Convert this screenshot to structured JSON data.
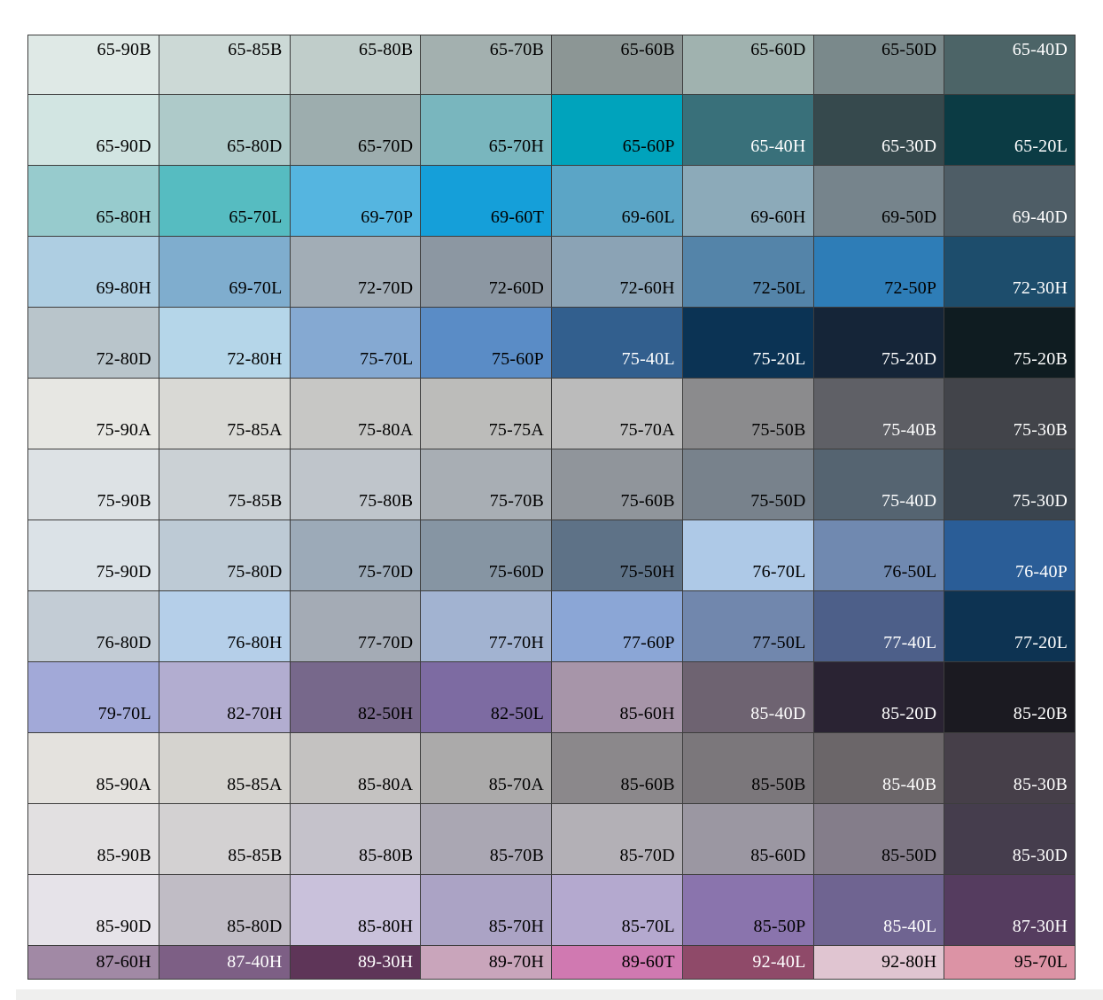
{
  "chart_data": {
    "type": "table",
    "title": "Colour swatch chart (paint colour codes over tinted swatches, blue-teal through grey to purple-pink range)",
    "layout": {
      "columns": 8,
      "rows": 14,
      "grid": "on",
      "border_color": "#3d3d3d",
      "label_color_light": "#ffffff",
      "label_color_dark": "#000000",
      "footer_strip_color": "#efefee"
    },
    "rows": [
      {
        "cells": [
          {
            "code": "65-90B",
            "bg": "#dfe9e6",
            "fg": "#000000"
          },
          {
            "code": "65-85B",
            "bg": "#ccd9d6",
            "fg": "#000000"
          },
          {
            "code": "65-80B",
            "bg": "#c0cdca",
            "fg": "#000000"
          },
          {
            "code": "65-70B",
            "bg": "#a3b0af",
            "fg": "#000000"
          },
          {
            "code": "65-60B",
            "bg": "#8c9695",
            "fg": "#000000"
          },
          {
            "code": "65-60D",
            "bg": "#a0b2af",
            "fg": "#000000"
          },
          {
            "code": "65-50D",
            "bg": "#7a898b",
            "fg": "#000000"
          },
          {
            "code": "65-40D",
            "bg": "#4c6467",
            "fg": "#ffffff"
          }
        ]
      },
      {
        "cells": [
          {
            "code": "65-90D",
            "bg": "#d2e5e2",
            "fg": "#000000"
          },
          {
            "code": "65-80D",
            "bg": "#aecac9",
            "fg": "#000000"
          },
          {
            "code": "65-70D",
            "bg": "#9dadae",
            "fg": "#000000"
          },
          {
            "code": "65-70H",
            "bg": "#79b6be",
            "fg": "#000000"
          },
          {
            "code": "65-60P",
            "bg": "#00a3bc",
            "fg": "#000000"
          },
          {
            "code": "65-40H",
            "bg": "#39707a",
            "fg": "#ffffff"
          },
          {
            "code": "65-30D",
            "bg": "#36494d",
            "fg": "#ffffff"
          },
          {
            "code": "65-20L",
            "bg": "#0b3b44",
            "fg": "#ffffff"
          }
        ]
      },
      {
        "cells": [
          {
            "code": "65-80H",
            "bg": "#97cbcd",
            "fg": "#000000"
          },
          {
            "code": "65-70L",
            "bg": "#56bcc1",
            "fg": "#000000"
          },
          {
            "code": "69-70P",
            "bg": "#55b5e0",
            "fg": "#000000"
          },
          {
            "code": "69-60T",
            "bg": "#159fd9",
            "fg": "#000000"
          },
          {
            "code": "69-60L",
            "bg": "#5ba5c6",
            "fg": "#000000"
          },
          {
            "code": "69-60H",
            "bg": "#8caab9",
            "fg": "#000000"
          },
          {
            "code": "69-50D",
            "bg": "#76848c",
            "fg": "#000000"
          },
          {
            "code": "69-40D",
            "bg": "#4e5d66",
            "fg": "#ffffff"
          }
        ]
      },
      {
        "cells": [
          {
            "code": "69-80H",
            "bg": "#aecee2",
            "fg": "#000000"
          },
          {
            "code": "69-70L",
            "bg": "#7fadce",
            "fg": "#000000"
          },
          {
            "code": "72-70D",
            "bg": "#a2adb6",
            "fg": "#000000"
          },
          {
            "code": "72-60D",
            "bg": "#8c97a2",
            "fg": "#000000"
          },
          {
            "code": "72-60H",
            "bg": "#8ba3b5",
            "fg": "#000000"
          },
          {
            "code": "72-50L",
            "bg": "#5484a9",
            "fg": "#000000"
          },
          {
            "code": "72-50P",
            "bg": "#2e7db7",
            "fg": "#000000"
          },
          {
            "code": "72-30H",
            "bg": "#1d4d6c",
            "fg": "#ffffff"
          }
        ]
      },
      {
        "cells": [
          {
            "code": "72-80D",
            "bg": "#b9c5cb",
            "fg": "#000000"
          },
          {
            "code": "72-80H",
            "bg": "#b5d6e9",
            "fg": "#000000"
          },
          {
            "code": "75-70L",
            "bg": "#85a9d2",
            "fg": "#000000"
          },
          {
            "code": "75-60P",
            "bg": "#5a8cc6",
            "fg": "#000000"
          },
          {
            "code": "75-40L",
            "bg": "#325f8e",
            "fg": "#ffffff"
          },
          {
            "code": "75-20L",
            "bg": "#0b3354",
            "fg": "#ffffff"
          },
          {
            "code": "75-20D",
            "bg": "#152538",
            "fg": "#ffffff"
          },
          {
            "code": "75-20B",
            "bg": "#0f1c21",
            "fg": "#ffffff"
          }
        ]
      },
      {
        "cells": [
          {
            "code": "75-90A",
            "bg": "#e7e7e3",
            "fg": "#000000"
          },
          {
            "code": "75-85A",
            "bg": "#d9d9d5",
            "fg": "#000000"
          },
          {
            "code": "75-80A",
            "bg": "#c7c7c5",
            "fg": "#000000"
          },
          {
            "code": "75-75A",
            "bg": "#bcbcba",
            "fg": "#000000"
          },
          {
            "code": "75-70A",
            "bg": "#bbbbbb",
            "fg": "#000000"
          },
          {
            "code": "75-50B",
            "bg": "#8b8b8d",
            "fg": "#000000"
          },
          {
            "code": "75-40B",
            "bg": "#5f6066",
            "fg": "#ffffff"
          },
          {
            "code": "75-30B",
            "bg": "#42444a",
            "fg": "#ffffff"
          }
        ]
      },
      {
        "cells": [
          {
            "code": "75-90B",
            "bg": "#dde2e5",
            "fg": "#000000"
          },
          {
            "code": "75-85B",
            "bg": "#cbd1d5",
            "fg": "#000000"
          },
          {
            "code": "75-80B",
            "bg": "#bfc5cb",
            "fg": "#000000"
          },
          {
            "code": "75-70B",
            "bg": "#a8aeb4",
            "fg": "#000000"
          },
          {
            "code": "75-60B",
            "bg": "#90959b",
            "fg": "#000000"
          },
          {
            "code": "75-50D",
            "bg": "#78828c",
            "fg": "#000000"
          },
          {
            "code": "75-40D",
            "bg": "#556471",
            "fg": "#ffffff"
          },
          {
            "code": "75-30D",
            "bg": "#3a444e",
            "fg": "#ffffff"
          }
        ]
      },
      {
        "cells": [
          {
            "code": "75-90D",
            "bg": "#dbe2e7",
            "fg": "#000000"
          },
          {
            "code": "75-80D",
            "bg": "#bdcad5",
            "fg": "#000000"
          },
          {
            "code": "75-70D",
            "bg": "#9caab8",
            "fg": "#000000"
          },
          {
            "code": "75-60D",
            "bg": "#8695a3",
            "fg": "#000000"
          },
          {
            "code": "75-50H",
            "bg": "#5e7287",
            "fg": "#000000"
          },
          {
            "code": "76-70L",
            "bg": "#aec9e7",
            "fg": "#000000"
          },
          {
            "code": "76-50L",
            "bg": "#7089b0",
            "fg": "#000000"
          },
          {
            "code": "76-40P",
            "bg": "#2a5d97",
            "fg": "#ffffff"
          }
        ]
      },
      {
        "cells": [
          {
            "code": "76-80D",
            "bg": "#c3ccd5",
            "fg": "#000000"
          },
          {
            "code": "76-80H",
            "bg": "#b5cfe9",
            "fg": "#000000"
          },
          {
            "code": "77-70D",
            "bg": "#a4abb5",
            "fg": "#000000"
          },
          {
            "code": "77-70H",
            "bg": "#a2b3d1",
            "fg": "#000000"
          },
          {
            "code": "77-60P",
            "bg": "#8ba6d6",
            "fg": "#000000"
          },
          {
            "code": "77-50L",
            "bg": "#7187ad",
            "fg": "#000000"
          },
          {
            "code": "77-40L",
            "bg": "#4d5f89",
            "fg": "#ffffff"
          },
          {
            "code": "77-20L",
            "bg": "#0d3352",
            "fg": "#ffffff"
          }
        ]
      },
      {
        "cells": [
          {
            "code": "79-70L",
            "bg": "#a2a9d8",
            "fg": "#000000"
          },
          {
            "code": "82-70H",
            "bg": "#b2add0",
            "fg": "#000000"
          },
          {
            "code": "82-50H",
            "bg": "#77688b",
            "fg": "#000000"
          },
          {
            "code": "82-50L",
            "bg": "#7d6ba2",
            "fg": "#000000"
          },
          {
            "code": "85-60H",
            "bg": "#a795a9",
            "fg": "#000000"
          },
          {
            "code": "85-40D",
            "bg": "#6e6371",
            "fg": "#ffffff"
          },
          {
            "code": "85-20D",
            "bg": "#2a2333",
            "fg": "#ffffff"
          },
          {
            "code": "85-20B",
            "bg": "#1b1a21",
            "fg": "#ffffff"
          }
        ]
      },
      {
        "cells": [
          {
            "code": "85-90A",
            "bg": "#e4e2de",
            "fg": "#000000"
          },
          {
            "code": "85-85A",
            "bg": "#d5d3cf",
            "fg": "#000000"
          },
          {
            "code": "85-80A",
            "bg": "#c4c2c1",
            "fg": "#000000"
          },
          {
            "code": "85-70A",
            "bg": "#abaaaa",
            "fg": "#000000"
          },
          {
            "code": "85-60B",
            "bg": "#8b888b",
            "fg": "#000000"
          },
          {
            "code": "85-50B",
            "bg": "#7b777b",
            "fg": "#000000"
          },
          {
            "code": "85-40B",
            "bg": "#6b6669",
            "fg": "#ffffff"
          },
          {
            "code": "85-30B",
            "bg": "#463f49",
            "fg": "#ffffff"
          }
        ]
      },
      {
        "cells": [
          {
            "code": "85-90B",
            "bg": "#e2e0e1",
            "fg": "#000000"
          },
          {
            "code": "85-85B",
            "bg": "#d3d1d2",
            "fg": "#000000"
          },
          {
            "code": "85-80B",
            "bg": "#c5c2cb",
            "fg": "#000000"
          },
          {
            "code": "85-70B",
            "bg": "#aaa7b3",
            "fg": "#000000"
          },
          {
            "code": "85-70D",
            "bg": "#b3b0b6",
            "fg": "#000000"
          },
          {
            "code": "85-60D",
            "bg": "#9b97a2",
            "fg": "#000000"
          },
          {
            "code": "85-50D",
            "bg": "#847d8a",
            "fg": "#000000"
          },
          {
            "code": "85-30D",
            "bg": "#453d4d",
            "fg": "#ffffff"
          }
        ]
      },
      {
        "cells": [
          {
            "code": "85-90D",
            "bg": "#e6e3e9",
            "fg": "#000000"
          },
          {
            "code": "85-80D",
            "bg": "#c0bcc5",
            "fg": "#000000"
          },
          {
            "code": "85-80H",
            "bg": "#c9c1db",
            "fg": "#000000"
          },
          {
            "code": "85-70H",
            "bg": "#aba3c5",
            "fg": "#000000"
          },
          {
            "code": "85-70L",
            "bg": "#b4a9cf",
            "fg": "#000000"
          },
          {
            "code": "85-50P",
            "bg": "#8a74ad",
            "fg": "#000000"
          },
          {
            "code": "85-40L",
            "bg": "#6f6491",
            "fg": "#ffffff"
          },
          {
            "code": "87-30H",
            "bg": "#553c5f",
            "fg": "#ffffff"
          }
        ]
      },
      {
        "cells": [
          {
            "code": "87-60H",
            "bg": "#a189a5",
            "fg": "#000000"
          },
          {
            "code": "87-40H",
            "bg": "#7d5f85",
            "fg": "#ffffff"
          },
          {
            "code": "89-30H",
            "bg": "#5e3558",
            "fg": "#ffffff"
          },
          {
            "code": "89-70H",
            "bg": "#c9a5bb",
            "fg": "#000000"
          },
          {
            "code": "89-60T",
            "bg": "#d079b1",
            "fg": "#000000"
          },
          {
            "code": "92-40L",
            "bg": "#8f4a69",
            "fg": "#ffffff"
          },
          {
            "code": "92-80H",
            "bg": "#e0c5d1",
            "fg": "#000000"
          },
          {
            "code": "95-70L",
            "bg": "#dc93a5",
            "fg": "#000000"
          }
        ]
      }
    ]
  }
}
